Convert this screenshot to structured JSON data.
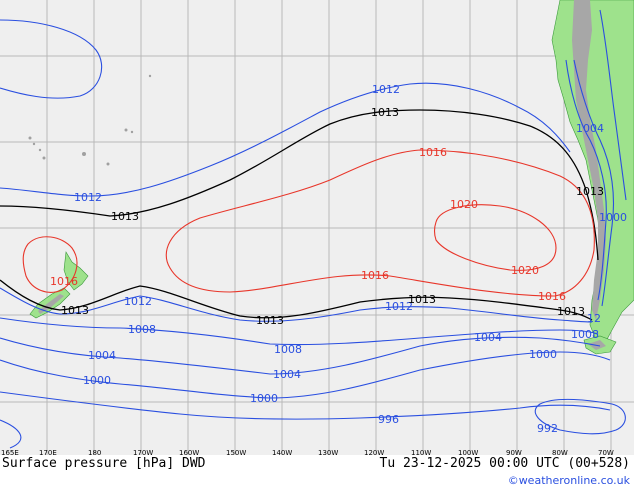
{
  "title": "Surface pressure [hPa] DWD",
  "valid_time": "Tu 23-12-2025 00:00 UTC (00+528)",
  "credit": "©weatheronline.co.uk",
  "longitude_ticks": [
    "165E",
    "170E",
    "180",
    "170W",
    "160W",
    "150W",
    "140W",
    "130W",
    "120W",
    "110W",
    "100W",
    "90W",
    "80W",
    "70W"
  ],
  "isobar_labels": {
    "top_1012": "1012",
    "top_1013": "1013",
    "left_1012": "1012",
    "left_1013": "1013",
    "red_1016_top": "1016",
    "red_1020_a": "1020",
    "red_1020_b": "1020",
    "red_1016_mid": "1016",
    "red_1016_nz": "1016",
    "red_1016_east": "1016",
    "mid_1012_a": "1012",
    "mid_1012_b": "1012",
    "mid_1013_a": "1013",
    "mid_1013_b": "1013",
    "mid_1013_c": "1013",
    "mid_1013_d": "1013",
    "right_1013": "1013",
    "coast_1004": "1004",
    "coast_1000": "1000",
    "iso_1008_a": "1008",
    "iso_1008_b": "1008",
    "iso_1008_c": "1008",
    "iso_1004_a": "1004",
    "iso_1004_b": "1004",
    "iso_1004_c": "1004",
    "iso_1000_a": "1000",
    "iso_1000_b": "1000",
    "iso_1000_c": "1000",
    "iso_996": "996",
    "iso_992": "992",
    "iso_12": "12"
  },
  "colors": {
    "ocean": "#efefef",
    "land": "#9ee28c",
    "mountains": "#a7a7a7",
    "isobar_low": "#2a4fe0",
    "isobar_ref": "#000000",
    "isobar_high": "#e8362a"
  }
}
